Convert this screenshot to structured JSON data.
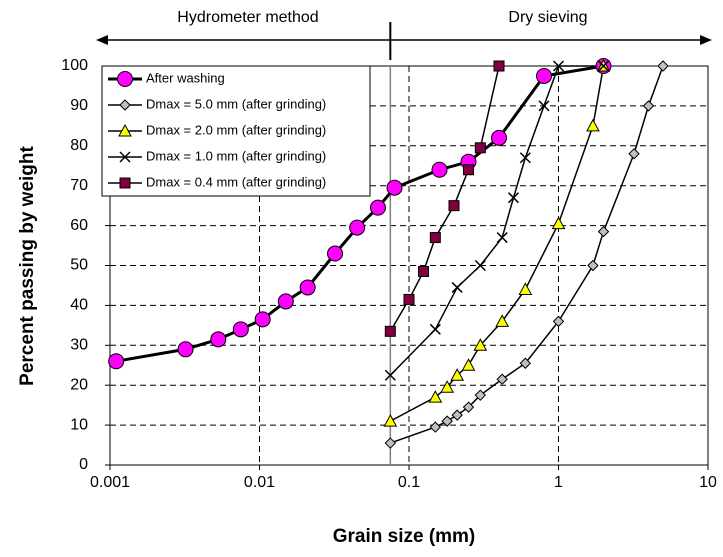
{
  "chart_data": {
    "type": "scatter",
    "xscale": "log",
    "grid": true,
    "legend": "upper left",
    "xlabel": "Grain size (mm)",
    "ylabel": "Percent passing by weight",
    "annotations": [
      "Hydrometer method",
      "Dry sieving"
    ],
    "xlim": [
      0.001,
      10
    ],
    "xticks": [
      0.001,
      0.01,
      0.1,
      1,
      10
    ],
    "ylim": [
      0,
      100
    ],
    "yticks": [
      0,
      10,
      20,
      30,
      40,
      50,
      60,
      70,
      80,
      90,
      100
    ],
    "series": [
      {
        "name": "After washing",
        "color": "#ff00ff",
        "marker": "circle",
        "x": [
          0.0011,
          0.0032,
          0.0053,
          0.0075,
          0.0105,
          0.015,
          0.021,
          0.032,
          0.045,
          0.062,
          0.08,
          0.16,
          0.25,
          0.4,
          0.8,
          2.0
        ],
        "values": [
          26,
          29,
          31.5,
          34,
          36.5,
          41,
          44.5,
          53,
          59.5,
          64.5,
          69.5,
          74,
          76,
          82,
          97.5,
          100
        ]
      },
      {
        "name": "Dmax = 5.0 mm (after grinding)",
        "color": "#c0c0c0",
        "marker": "diamond",
        "x": [
          0.075,
          0.15,
          0.18,
          0.21,
          0.25,
          0.3,
          0.42,
          0.6,
          1.0,
          1.7,
          2.0,
          3.2,
          4.0,
          5.0
        ],
        "values": [
          5.5,
          9.5,
          11,
          12.5,
          14.5,
          17.5,
          21.5,
          25.5,
          36,
          50,
          58.5,
          78,
          90,
          100
        ]
      },
      {
        "name": "Dmax = 2.0 mm (after grinding)",
        "color": "#ffff00",
        "marker": "triangle",
        "x": [
          0.075,
          0.15,
          0.18,
          0.21,
          0.25,
          0.3,
          0.42,
          0.6,
          1.0,
          1.7,
          2.0
        ],
        "values": [
          11,
          17,
          19.5,
          22.5,
          25,
          30,
          36,
          44,
          60.5,
          85,
          100
        ]
      },
      {
        "name": "Dmax = 1.0 mm (after grinding)",
        "color": "#000000",
        "marker": "cross",
        "x": [
          0.075,
          0.15,
          0.21,
          0.3,
          0.42,
          0.5,
          0.6,
          0.8,
          1.0,
          2.0
        ],
        "values": [
          22.5,
          34,
          44.5,
          50,
          57,
          67,
          77,
          90,
          100,
          100
        ]
      },
      {
        "name": "Dmax = 0.4 mm (after grinding)",
        "color": "#800040",
        "marker": "square",
        "x": [
          0.075,
          0.1,
          0.125,
          0.15,
          0.2,
          0.25,
          0.3,
          0.4
        ],
        "values": [
          33.5,
          41.5,
          48.5,
          57,
          65,
          74,
          79.5,
          100
        ]
      }
    ]
  }
}
